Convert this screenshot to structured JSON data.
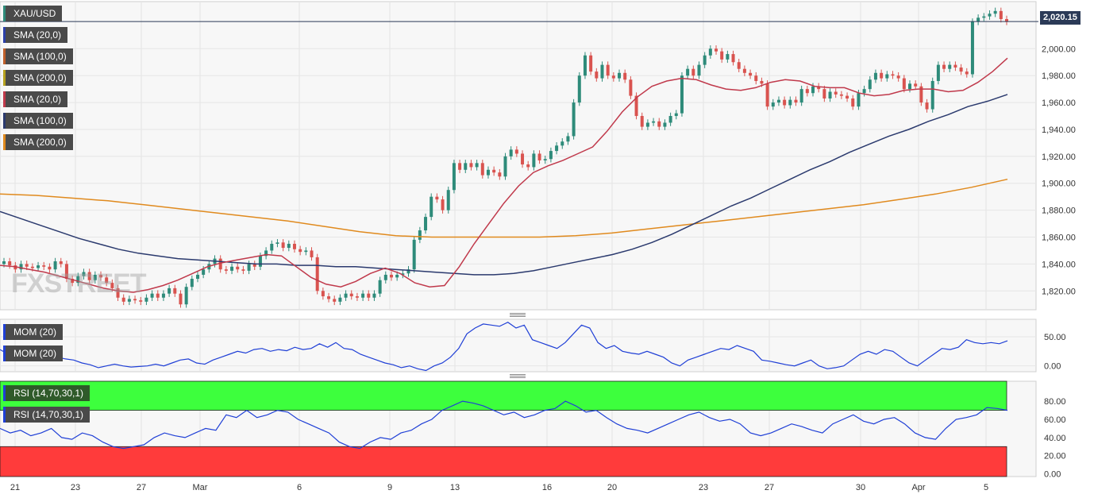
{
  "title": "XAU/USD",
  "last_price_label": "2,020.15",
  "watermark": "FXSTREET",
  "colors": {
    "bull": "#2e8b7a",
    "bear": "#d9534f",
    "sma20": "#c0394b",
    "sma100": "#2b3a6e",
    "sma200": "#e08a1e",
    "mom": "#1f3fd6",
    "rsi": "#1f3fd6",
    "rsi_overbought": "#3dff3d",
    "rsi_oversold": "#ff3b3b"
  },
  "legend": [
    {
      "label": "SMA (20,0)",
      "color": "#2b3fa8"
    },
    {
      "label": "SMA (100,0)",
      "color": "#c0602b"
    },
    {
      "label": "SMA (200,0)",
      "color": "#b6a11f"
    },
    {
      "label": "SMA (20,0)",
      "color": "#c0394b"
    },
    {
      "label": "SMA (100,0)",
      "color": "#2b3a6e"
    },
    {
      "label": "SMA (200,0)",
      "color": "#e08a1e"
    }
  ],
  "mom_labels": [
    "MOM (20)",
    "MOM (20)"
  ],
  "rsi_labels": [
    "RSI (14,70,30,1)",
    "RSI (14,70,30,1)"
  ],
  "chart_data": {
    "type": "candlestick",
    "title": "XAU/USD",
    "x_tick_labels": [
      "21",
      "23",
      "27",
      "Mar",
      "6",
      "9",
      "13",
      "16",
      "20",
      "23",
      "27",
      "30",
      "Apr",
      "5"
    ],
    "price_axis": {
      "ticks": [
        1820,
        1840,
        1860,
        1880,
        1900,
        1920,
        1940,
        1960,
        1980,
        2000
      ],
      "tick_labels": [
        "1,820.00",
        "1,840.00",
        "1,860.00",
        "1,880.00",
        "1,900.00",
        "1,920.00",
        "1,940.00",
        "1,960.00",
        "1,980.00",
        "2,000.00"
      ],
      "range": [
        1806,
        2035
      ]
    },
    "current_price": 2020.15,
    "candles_close": [
      1842,
      1839,
      1836,
      1840,
      1838,
      1837,
      1839,
      1838,
      1836,
      1842,
      1840,
      1829,
      1826,
      1831,
      1834,
      1828,
      1832,
      1830,
      1826,
      1822,
      1815,
      1812,
      1814,
      1813,
      1812,
      1815,
      1818,
      1815,
      1818,
      1822,
      1818,
      1810,
      1823,
      1829,
      1832,
      1836,
      1840,
      1844,
      1836,
      1835,
      1838,
      1836,
      1835,
      1840,
      1838,
      1846,
      1850,
      1855,
      1856,
      1852,
      1855,
      1851,
      1849,
      1850,
      1845,
      1820,
      1816,
      1814,
      1812,
      1815,
      1818,
      1816,
      1815,
      1818,
      1815,
      1818,
      1828,
      1832,
      1830,
      1832,
      1833,
      1836,
      1858,
      1865,
      1875,
      1890,
      1888,
      1880,
      1895,
      1915,
      1910,
      1915,
      1912,
      1915,
      1906,
      1910,
      1908,
      1905,
      1920,
      1925,
      1922,
      1914,
      1912,
      1922,
      1917,
      1918,
      1924,
      1928,
      1931,
      1935,
      1960,
      1980,
      1995,
      1983,
      1978,
      1988,
      1980,
      1978,
      1982,
      1977,
      1965,
      1950,
      1942,
      1945,
      1946,
      1942,
      1945,
      1950,
      1952,
      1980,
      1985,
      1980,
      1988,
      1995,
      2000,
      1998,
      1992,
      1996,
      1990,
      1985,
      1982,
      1980,
      1976,
      1974,
      1957,
      1960,
      1962,
      1958,
      1962,
      1960,
      1970,
      1967,
      1972,
      1970,
      1963,
      1968,
      1966,
      1965,
      1963,
      1957,
      1967,
      1970,
      1977,
      1982,
      1978,
      1981,
      1980,
      1978,
      1970,
      1974,
      1972,
      1960,
      1955,
      1976,
      1988,
      1985,
      1988,
      1986,
      1983,
      1981,
      2020,
      2023,
      2024,
      2026,
      2028,
      2022,
      2020
    ],
    "sma20": [
      1839,
      1838,
      1836,
      1834,
      1831,
      1828,
      1825,
      1822,
      1820,
      1819,
      1821,
      1824,
      1828,
      1833,
      1838,
      1841,
      1843,
      1845,
      1847,
      1846,
      1838,
      1830,
      1825,
      1823,
      1827,
      1833,
      1837,
      1833,
      1826,
      1823,
      1824,
      1838,
      1855,
      1870,
      1885,
      1898,
      1908,
      1913,
      1917,
      1922,
      1927,
      1939,
      1953,
      1964,
      1972,
      1976,
      1978,
      1977,
      1973,
      1970,
      1969,
      1971,
      1975,
      1977,
      1976,
      1972,
      1971,
      1971,
      1967,
      1965,
      1966,
      1969,
      1970,
      1970,
      1968,
      1969,
      1975,
      1983,
      1993
    ],
    "sma100": [
      1879,
      1874,
      1869,
      1864,
      1859,
      1855,
      1851,
      1848,
      1846,
      1844,
      1843,
      1842,
      1841,
      1840,
      1840,
      1839,
      1839,
      1838,
      1838,
      1837,
      1836,
      1835,
      1834,
      1833,
      1832,
      1832,
      1833,
      1835,
      1838,
      1841,
      1844,
      1847,
      1851,
      1856,
      1862,
      1869,
      1876,
      1883,
      1889,
      1896,
      1903,
      1910,
      1916,
      1923,
      1929,
      1935,
      1940,
      1946,
      1951,
      1957,
      1961,
      1966
    ],
    "sma200": [
      1892,
      1891,
      1889,
      1887,
      1884,
      1881,
      1878,
      1875,
      1872,
      1868,
      1864,
      1861,
      1860,
      1860,
      1860,
      1860,
      1861,
      1863,
      1866,
      1869,
      1872,
      1875,
      1878,
      1881,
      1884,
      1888,
      1892,
      1897,
      1903
    ],
    "mom": {
      "ticks": [
        0,
        50
      ],
      "tick_labels": [
        "0.00",
        "50.00"
      ],
      "range": [
        -10,
        80
      ],
      "values": [
        28,
        20,
        15,
        18,
        25,
        18,
        20,
        15,
        12,
        10,
        5,
        2,
        -3,
        0,
        3,
        0,
        -2,
        -1,
        0,
        3,
        0,
        5,
        10,
        12,
        5,
        3,
        10,
        15,
        20,
        25,
        22,
        28,
        30,
        25,
        28,
        26,
        32,
        28,
        30,
        38,
        32,
        40,
        30,
        28,
        20,
        15,
        10,
        5,
        2,
        -3,
        0,
        -5,
        -8,
        0,
        5,
        15,
        30,
        55,
        65,
        72,
        70,
        68,
        75,
        65,
        70,
        45,
        40,
        35,
        30,
        40,
        55,
        70,
        65,
        40,
        30,
        35,
        25,
        22,
        20,
        25,
        20,
        15,
        5,
        0,
        10,
        15,
        20,
        25,
        30,
        28,
        35,
        30,
        25,
        10,
        8,
        5,
        2,
        0,
        5,
        10,
        0,
        -5,
        -3,
        0,
        10,
        20,
        25,
        20,
        28,
        25,
        15,
        5,
        0,
        10,
        20,
        30,
        28,
        32,
        45,
        40,
        38,
        40,
        38,
        43
      ]
    },
    "rsi": {
      "ticks": [
        0,
        20,
        40,
        60,
        80
      ],
      "tick_labels": [
        "0.00",
        "20.00",
        "40.00",
        "60.00",
        "80.00"
      ],
      "range": [
        -3,
        102
      ],
      "overbought": 70,
      "oversold": 30,
      "values": [
        50,
        45,
        48,
        42,
        45,
        50,
        40,
        38,
        45,
        42,
        35,
        30,
        28,
        30,
        32,
        40,
        45,
        42,
        40,
        45,
        50,
        48,
        65,
        62,
        70,
        62,
        65,
        70,
        68,
        60,
        55,
        50,
        45,
        35,
        30,
        28,
        35,
        40,
        38,
        45,
        48,
        55,
        60,
        70,
        75,
        80,
        78,
        75,
        70,
        65,
        68,
        62,
        65,
        70,
        72,
        80,
        75,
        68,
        70,
        62,
        55,
        50,
        48,
        45,
        50,
        55,
        60,
        65,
        68,
        62,
        58,
        60,
        55,
        45,
        42,
        45,
        50,
        55,
        52,
        48,
        45,
        55,
        60,
        65,
        58,
        55,
        60,
        62,
        55,
        45,
        40,
        38,
        50,
        60,
        62,
        65,
        73,
        72,
        70
      ]
    }
  }
}
